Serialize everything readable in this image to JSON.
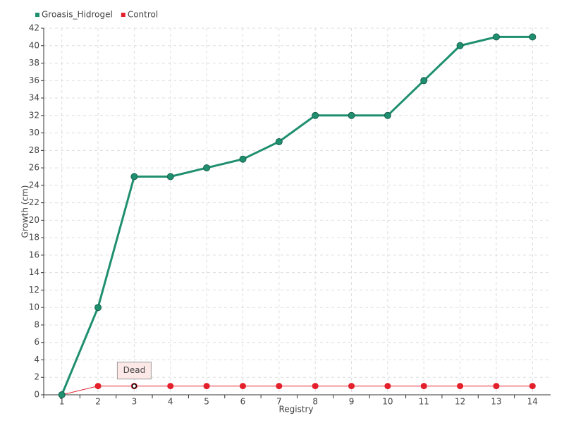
{
  "chart_data": {
    "type": "line",
    "x_label": "Registry",
    "y_label": "Growth (cm)",
    "categories": [
      "1",
      "2",
      "3",
      "4",
      "5",
      "6",
      "7",
      "8",
      "9",
      "10",
      "11",
      "12",
      "13",
      "14"
    ],
    "series": [
      {
        "name": "Groasis_Hidrogel",
        "color": "#1f8f6f",
        "values": [
          0,
          10,
          25,
          25,
          26,
          27,
          29,
          32,
          32,
          32,
          36,
          40,
          41,
          41
        ]
      },
      {
        "name": "Control",
        "color": "#e3202b",
        "values": [
          0,
          1,
          1,
          1,
          1,
          1,
          1,
          1,
          1,
          1,
          1,
          1,
          1,
          1
        ]
      }
    ],
    "annotation": {
      "label": "Dead",
      "x": "3",
      "series": "Control"
    },
    "ylim": [
      0,
      42
    ],
    "yticks": [
      0,
      2,
      4,
      6,
      8,
      10,
      12,
      14,
      16,
      18,
      20,
      22,
      24,
      26,
      28,
      30,
      32,
      34,
      36,
      38,
      40,
      42
    ],
    "grid": true,
    "legend": "top-left"
  }
}
